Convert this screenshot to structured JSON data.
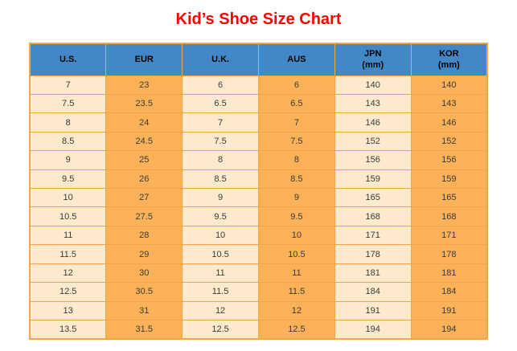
{
  "title": "Kid’s Shoe Size Chart",
  "colors": {
    "title_red": "#FF0000",
    "header_blue": "#4288C6",
    "header_text": "#000000",
    "column_light": "#FDEACD",
    "column_orange": "#FBB157",
    "grid_border": "#F2A646",
    "cell_text": "#3A3A3A",
    "page_background": "#FFFFFF"
  },
  "chart_data": {
    "type": "table",
    "title": "Kid’s Shoe Size Chart",
    "columns": [
      "U.S.",
      "EUR",
      "U.K.",
      "AUS",
      "JPN (mm)",
      "KOR (mm)"
    ],
    "headers": [
      {
        "line1": "U.S.",
        "line2": ""
      },
      {
        "line1": "EUR",
        "line2": ""
      },
      {
        "line1": "U.K.",
        "line2": ""
      },
      {
        "line1": "AUS",
        "line2": ""
      },
      {
        "line1": "JPN",
        "line2": "(mm)"
      },
      {
        "line1": "KOR",
        "line2": "(mm)"
      }
    ],
    "column_styles": [
      "light",
      "orange",
      "light",
      "orange",
      "light",
      "orange"
    ],
    "rows": [
      [
        "7",
        "23",
        "6",
        "6",
        "140",
        "140"
      ],
      [
        "7.5",
        "23.5",
        "6.5",
        "6.5",
        "143",
        "143"
      ],
      [
        "8",
        "24",
        "7",
        "7",
        "146",
        "146"
      ],
      [
        "8.5",
        "24.5",
        "7.5",
        "7.5",
        "152",
        "152"
      ],
      [
        "9",
        "25",
        "8",
        "8",
        "156",
        "156"
      ],
      [
        "9.5",
        "26",
        "8.5",
        "8.5",
        "159",
        "159"
      ],
      [
        "10",
        "27",
        "9",
        "9",
        "165",
        "165"
      ],
      [
        "10.5",
        "27.5",
        "9.5",
        "9.5",
        "168",
        "168"
      ],
      [
        "11",
        "28",
        "10",
        "10",
        "171",
        "171"
      ],
      [
        "11.5",
        "29",
        "10.5",
        "10.5",
        "178",
        "178"
      ],
      [
        "12",
        "30",
        "11",
        "11",
        "181",
        "181"
      ],
      [
        "12.5",
        "30.5",
        "11.5",
        "11.5",
        "184",
        "184"
      ],
      [
        "13",
        "31",
        "12",
        "12",
        "191",
        "191"
      ],
      [
        "13.5",
        "31.5",
        "12.5",
        "12.5",
        "194",
        "194"
      ]
    ]
  }
}
